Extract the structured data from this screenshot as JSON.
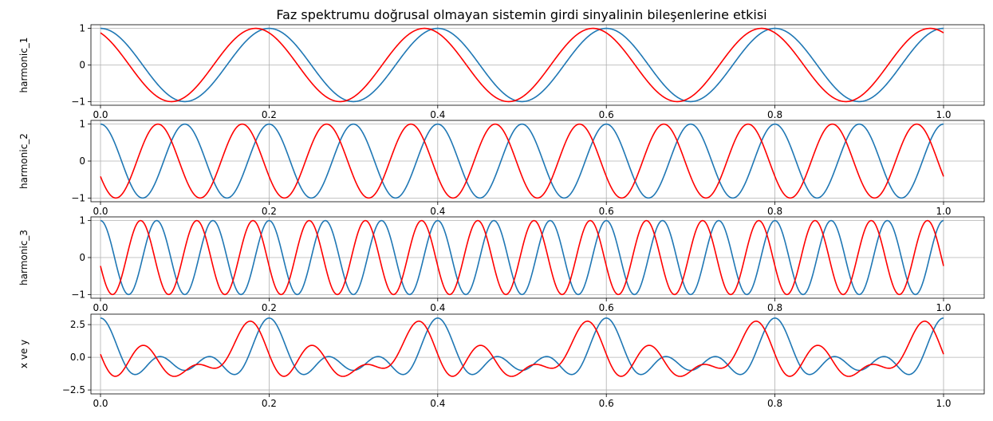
{
  "figure": {
    "title": "Faz spektrumu doğrusal olmayan sistemin girdi sinyalinin bileşenlerine etkisi"
  },
  "colors": {
    "series_x": "#1f77b4",
    "series_y": "#ff0000",
    "grid": "#b0b0b0",
    "axes": "#000000"
  },
  "chart_data": [
    {
      "type": "line",
      "ylabel": "harmonic_1",
      "xlim": [
        0,
        1
      ],
      "ylim": [
        -1.1,
        1.1
      ],
      "xticks": [
        "0.0",
        "0.2",
        "0.4",
        "0.6",
        "0.8",
        "1.0"
      ],
      "yticks": [
        "1",
        "0",
        "−1"
      ],
      "grid": true,
      "series": [
        {
          "formula": "cos(2π·5·t)",
          "amplitude": 1,
          "frequency": 5,
          "phase": 0,
          "color": "#1f77b4"
        },
        {
          "formula": "cos(2π·5·t + 0.5)",
          "amplitude": 1,
          "frequency": 5,
          "phase": 0.5,
          "color": "#ff0000"
        }
      ]
    },
    {
      "type": "line",
      "ylabel": "harmonic_2",
      "xlim": [
        0,
        1
      ],
      "ylim": [
        -1.1,
        1.1
      ],
      "xticks": [
        "0.0",
        "0.2",
        "0.4",
        "0.6",
        "0.8",
        "1.0"
      ],
      "yticks": [
        "1",
        "0",
        "−1"
      ],
      "grid": true,
      "series": [
        {
          "formula": "cos(2π·10·t)",
          "amplitude": 1,
          "frequency": 10,
          "phase": 0,
          "color": "#1f77b4"
        },
        {
          "formula": "cos(2π·10·t + 2)",
          "amplitude": 1,
          "frequency": 10,
          "phase": 2,
          "color": "#ff0000"
        }
      ]
    },
    {
      "type": "line",
      "ylabel": "harmonic_3",
      "xlim": [
        0,
        1
      ],
      "ylim": [
        -1.1,
        1.1
      ],
      "xticks": [
        "0.0",
        "0.2",
        "0.4",
        "0.6",
        "0.8",
        "1.0"
      ],
      "yticks": [
        "1",
        "0",
        "−1"
      ],
      "grid": true,
      "series": [
        {
          "formula": "cos(2π·15·t)",
          "amplitude": 1,
          "frequency": 15,
          "phase": 0,
          "color": "#1f77b4"
        },
        {
          "formula": "cos(2π·15·t + 1.8)",
          "amplitude": 1,
          "frequency": 15,
          "phase": 1.8,
          "color": "#ff0000"
        }
      ]
    },
    {
      "type": "line",
      "ylabel": "x ve y",
      "xlim": [
        0,
        1
      ],
      "ylim": [
        -2.8,
        3.3
      ],
      "xticks": [
        "0.0",
        "0.2",
        "0.4",
        "0.6",
        "0.8",
        "1.0"
      ],
      "yticks": [
        "2.5",
        "0.0",
        "−2.5"
      ],
      "grid": true,
      "series": [
        {
          "formula": "sum of blue harmonics",
          "sum_of": "series_0",
          "color": "#1f77b4"
        },
        {
          "formula": "sum of red harmonics",
          "sum_of": "series_1",
          "color": "#ff0000"
        }
      ]
    }
  ]
}
